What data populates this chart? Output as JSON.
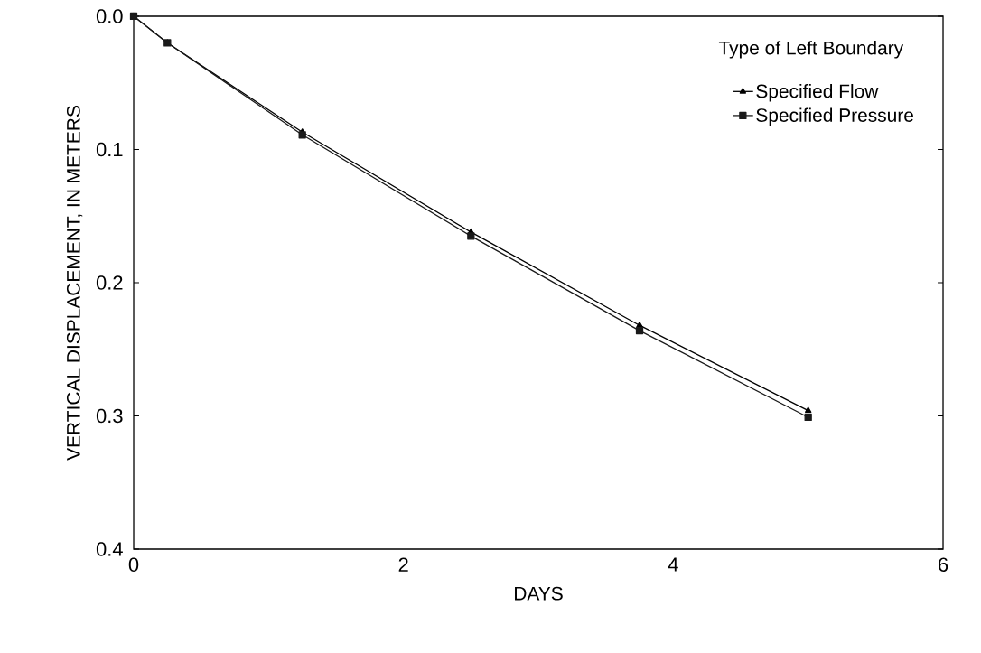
{
  "chart_data": {
    "type": "line",
    "xlabel": "DAYS",
    "ylabel": "VERTICAL DISPLACEMENT, IN METERS",
    "legend_title": "Type of Left Boundary",
    "legend": "top right",
    "x": [
      0,
      0.25,
      1.25,
      2.5,
      3.75,
      5
    ],
    "series": [
      {
        "name": "Specified Flow",
        "color": "#000000",
        "marker": "triangle",
        "values": [
          0,
          0.02,
          0.087,
          0.162,
          0.232,
          0.296
        ]
      },
      {
        "name": "Specified Pressure",
        "color": "#1a1a1a",
        "marker": "square",
        "values": [
          0,
          0.02,
          0.089,
          0.165,
          0.236,
          0.301
        ]
      }
    ],
    "xlim": [
      0,
      6
    ],
    "xticks": [
      0,
      2,
      4,
      6
    ],
    "ylim": [
      0.4,
      0
    ],
    "yticks": [
      {
        "value": 0,
        "label": "0.0"
      },
      0.1,
      0.2,
      0.3,
      0.4
    ],
    "grid": false,
    "line_style": "solid"
  }
}
